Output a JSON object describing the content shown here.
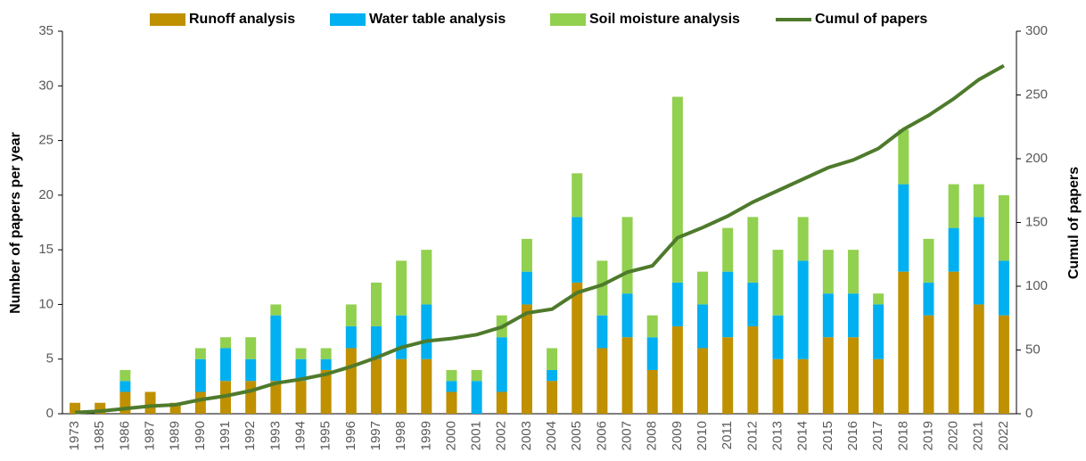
{
  "chart_data": {
    "type": "bar",
    "stacked": true,
    "categories": [
      "1973",
      "1985",
      "1986",
      "1987",
      "1989",
      "1990",
      "1991",
      "1992",
      "1993",
      "1994",
      "1995",
      "1996",
      "1997",
      "1998",
      "1999",
      "2000",
      "2001",
      "2002",
      "2003",
      "2004",
      "2005",
      "2006",
      "2007",
      "2008",
      "2009",
      "2010",
      "2011",
      "2012",
      "2013",
      "2014",
      "2015",
      "2016",
      "2017",
      "2018",
      "2019",
      "2020",
      "2021",
      "2022"
    ],
    "series": [
      {
        "name": "Runoff analysis",
        "color": "#bf9000",
        "values": [
          1,
          1,
          2,
          2,
          1,
          2,
          3,
          3,
          3,
          3,
          4,
          6,
          5,
          5,
          5,
          2,
          0,
          2,
          10,
          3,
          12,
          6,
          7,
          4,
          8,
          6,
          7,
          8,
          5,
          5,
          7,
          7,
          5,
          13,
          9,
          13,
          10,
          9
        ]
      },
      {
        "name": "Water table analysis",
        "color": "#00b0f0",
        "values": [
          0,
          0,
          1,
          0,
          0,
          3,
          3,
          2,
          6,
          2,
          1,
          2,
          3,
          4,
          5,
          1,
          3,
          5,
          3,
          1,
          6,
          3,
          4,
          3,
          4,
          4,
          6,
          4,
          4,
          9,
          4,
          4,
          5,
          8,
          3,
          4,
          8,
          5
        ]
      },
      {
        "name": "Soil moisture analysis",
        "color": "#92d050",
        "values": [
          0,
          0,
          1,
          0,
          0,
          1,
          1,
          2,
          1,
          1,
          1,
          2,
          4,
          5,
          5,
          1,
          1,
          2,
          3,
          2,
          4,
          5,
          7,
          2,
          17,
          3,
          4,
          6,
          6,
          4,
          4,
          4,
          1,
          5,
          4,
          4,
          3,
          6
        ]
      },
      {
        "name": "Cumul of papers",
        "color": "#4e7a2c",
        "type": "line",
        "axis": "y2",
        "values": [
          1,
          2,
          4,
          6,
          7,
          11,
          14,
          18,
          24,
          27,
          31,
          37,
          44,
          52,
          57,
          59,
          62,
          68,
          79,
          82,
          95,
          101,
          111,
          116,
          138,
          146,
          155,
          166,
          175,
          184,
          193,
          199,
          208,
          223,
          234,
          247,
          262,
          273
        ]
      }
    ],
    "ylabel": "Number of papers per year",
    "y2label": "Cumul of papers",
    "ylim": [
      0,
      35
    ],
    "yticks": [
      0,
      5,
      10,
      15,
      20,
      25,
      30,
      35
    ],
    "y2lim": [
      0,
      300
    ],
    "y2ticks": [
      0,
      50,
      100,
      150,
      200,
      250,
      300
    ],
    "legend": "top",
    "grid": false
  }
}
